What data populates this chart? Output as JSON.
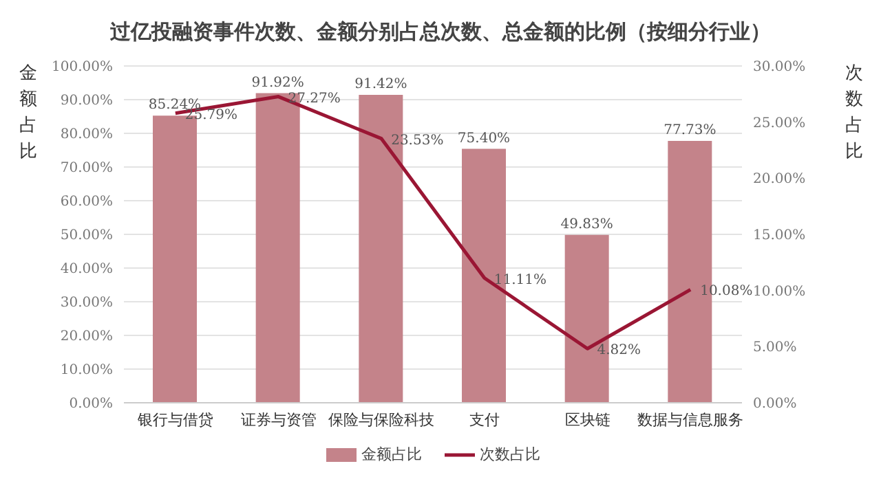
{
  "chart_data": {
    "type": "bar",
    "title": "过亿投融资事件次数、金额分别占总次数、总金额的比例（按细分行业）",
    "ylabel": "金额占比",
    "y2label": "次数占比",
    "categories": [
      "银行与借贷",
      "证券与资管",
      "保险与保险科技",
      "支付",
      "区块链",
      "数据与信息服务"
    ],
    "series": [
      {
        "name": "金额占比",
        "color": "#c4838a",
        "values": [
          85.24,
          91.92,
          91.42,
          75.4,
          49.83,
          77.73
        ],
        "value_labels": [
          "85.24%",
          "91.92%",
          "91.42%",
          "75.40%",
          "49.83%",
          "77.73%"
        ]
      },
      {
        "name": "次数占比",
        "type": "line",
        "axis": "y2",
        "color": "#9a1634",
        "values": [
          25.79,
          27.27,
          23.53,
          11.11,
          4.82,
          10.08
        ],
        "value_labels": [
          "25.79%",
          "27.27%",
          "23.53%",
          "11.11%",
          "4.82%",
          "10.08%"
        ]
      }
    ],
    "ylim": [
      0,
      100
    ],
    "yticks": [
      {
        "value": 0,
        "label": "0.00%"
      },
      {
        "value": 10,
        "label": "10.00%"
      },
      {
        "value": 20,
        "label": "20.00%"
      },
      {
        "value": 30,
        "label": "30.00%"
      },
      {
        "value": 40,
        "label": "40.00%"
      },
      {
        "value": 50,
        "label": "50.00%"
      },
      {
        "value": 60,
        "label": "60.00%"
      },
      {
        "value": 70,
        "label": "70.00%"
      },
      {
        "value": 80,
        "label": "80.00%"
      },
      {
        "value": 90,
        "label": "90.00%"
      },
      {
        "value": 100,
        "label": "100.00%"
      }
    ],
    "y2lim": [
      0,
      30
    ],
    "y2ticks": [
      {
        "value": 0,
        "label": "0.00%"
      },
      {
        "value": 5,
        "label": "5.00%"
      },
      {
        "value": 10,
        "label": "10.00%"
      },
      {
        "value": 15,
        "label": "15.00%"
      },
      {
        "value": 20,
        "label": "20.00%"
      },
      {
        "value": 25,
        "label": "25.00%"
      },
      {
        "value": 30,
        "label": "30.00%"
      }
    ],
    "grid": "y",
    "legend": "bottom",
    "marker": "none",
    "line_style": "solid"
  }
}
